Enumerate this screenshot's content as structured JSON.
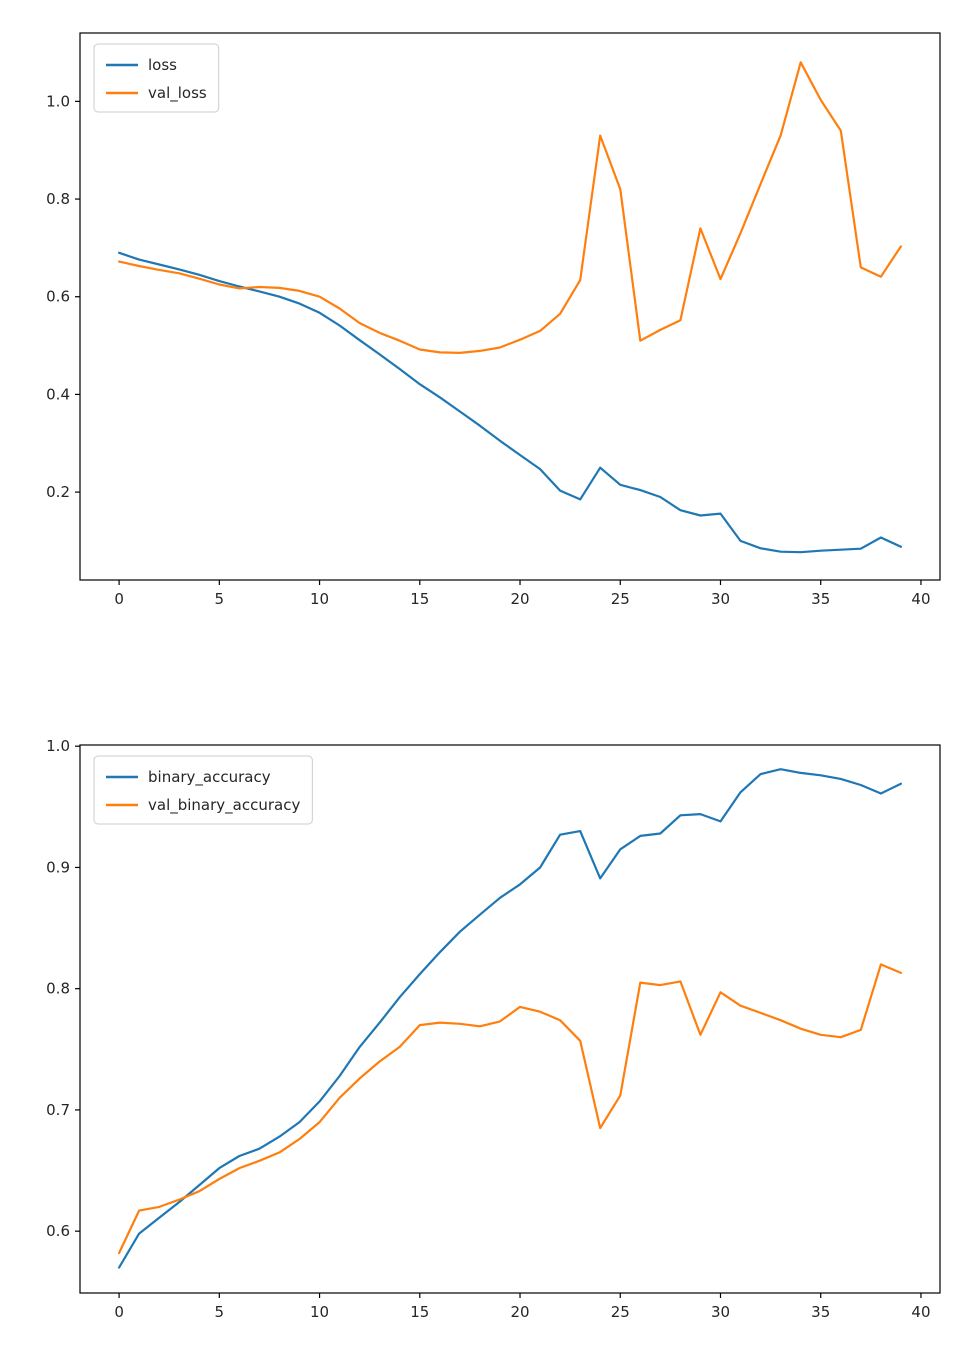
{
  "page": {
    "background": "#ffffff"
  },
  "colors": {
    "line_blue": "#1f77b4",
    "line_orange": "#ff7f0e",
    "axis": "#000000",
    "tick_label": "#262626",
    "legend_bg": "#ffffff",
    "legend_border": "#cccccc"
  },
  "chart_data": [
    {
      "type": "line",
      "title": "",
      "xlabel": "",
      "ylabel": "",
      "grid": false,
      "x": [
        0,
        1,
        2,
        3,
        4,
        5,
        6,
        7,
        8,
        9,
        10,
        11,
        12,
        13,
        14,
        15,
        16,
        17,
        18,
        19,
        20,
        21,
        22,
        23,
        24,
        25,
        26,
        27,
        28,
        29,
        30,
        31,
        32,
        33,
        34,
        35,
        36,
        37,
        38,
        39
      ],
      "series": [
        {
          "name": "loss",
          "color": "#1f77b4",
          "values": [
            0.69,
            0.676,
            0.666,
            0.656,
            0.645,
            0.632,
            0.621,
            0.611,
            0.6,
            0.586,
            0.567,
            0.541,
            0.511,
            0.482,
            0.452,
            0.421,
            0.394,
            0.365,
            0.336,
            0.305,
            0.276,
            0.247,
            0.203,
            0.185,
            0.25,
            0.215,
            0.204,
            0.19,
            0.163,
            0.152,
            0.156,
            0.1,
            0.085,
            0.078,
            0.077,
            0.08,
            0.082,
            0.084,
            0.107,
            0.088
          ]
        },
        {
          "name": "val_loss",
          "color": "#ff7f0e",
          "values": [
            0.672,
            0.663,
            0.655,
            0.648,
            0.637,
            0.625,
            0.617,
            0.62,
            0.618,
            0.612,
            0.6,
            0.576,
            0.546,
            0.526,
            0.51,
            0.492,
            0.486,
            0.485,
            0.489,
            0.496,
            0.512,
            0.53,
            0.565,
            0.634,
            0.93,
            0.82,
            0.51,
            0.532,
            0.552,
            0.74,
            0.636,
            0.73,
            0.831,
            0.93,
            1.08,
            1.003,
            0.94,
            0.66,
            0.641,
            0.703
          ]
        }
      ],
      "xlim": [
        -1.95,
        40.95
      ],
      "ylim": [
        0.02,
        1.14
      ],
      "xticks": [
        0,
        5,
        10,
        15,
        20,
        25,
        30,
        35,
        40
      ],
      "xtick_labels": [
        "0",
        "5",
        "10",
        "15",
        "20",
        "25",
        "30",
        "35",
        "40"
      ],
      "yticks": [
        0.2,
        0.4,
        0.6,
        0.8,
        1.0
      ],
      "ytick_labels": [
        "0.2",
        "0.4",
        "0.6",
        "0.8",
        "1.0"
      ],
      "legend": {
        "position": "upper-left",
        "entries": [
          "loss",
          "val_loss"
        ]
      }
    },
    {
      "type": "line",
      "title": "",
      "xlabel": "",
      "ylabel": "",
      "grid": false,
      "x": [
        0,
        1,
        2,
        3,
        4,
        5,
        6,
        7,
        8,
        9,
        10,
        11,
        12,
        13,
        14,
        15,
        16,
        17,
        18,
        19,
        20,
        21,
        22,
        23,
        24,
        25,
        26,
        27,
        28,
        29,
        30,
        31,
        32,
        33,
        34,
        35,
        36,
        37,
        38,
        39
      ],
      "series": [
        {
          "name": "binary_accuracy",
          "color": "#1f77b4",
          "values": [
            0.57,
            0.598,
            0.611,
            0.624,
            0.638,
            0.652,
            0.662,
            0.668,
            0.678,
            0.69,
            0.707,
            0.728,
            0.752,
            0.772,
            0.793,
            0.812,
            0.83,
            0.847,
            0.861,
            0.875,
            0.886,
            0.9,
            0.927,
            0.93,
            0.891,
            0.915,
            0.926,
            0.928,
            0.943,
            0.944,
            0.938,
            0.962,
            0.977,
            0.981,
            0.978,
            0.976,
            0.973,
            0.968,
            0.961,
            0.969
          ]
        },
        {
          "name": "val_binary_accuracy",
          "color": "#ff7f0e",
          "values": [
            0.582,
            0.617,
            0.62,
            0.626,
            0.633,
            0.643,
            0.652,
            0.658,
            0.665,
            0.676,
            0.69,
            0.71,
            0.726,
            0.74,
            0.752,
            0.77,
            0.772,
            0.771,
            0.769,
            0.773,
            0.785,
            0.781,
            0.774,
            0.757,
            0.685,
            0.712,
            0.805,
            0.803,
            0.806,
            0.762,
            0.797,
            0.786,
            0.78,
            0.774,
            0.767,
            0.762,
            0.76,
            0.766,
            0.82,
            0.813
          ]
        }
      ],
      "xlim": [
        -1.95,
        40.95
      ],
      "ylim": [
        0.549,
        1.001
      ],
      "xticks": [
        0,
        5,
        10,
        15,
        20,
        25,
        30,
        35,
        40
      ],
      "xtick_labels": [
        "0",
        "5",
        "10",
        "15",
        "20",
        "25",
        "30",
        "35",
        "40"
      ],
      "yticks": [
        0.6,
        0.7,
        0.8,
        0.9,
        1.0
      ],
      "ytick_labels": [
        "0.6",
        "0.7",
        "0.8",
        "0.9",
        "1.0"
      ],
      "legend": {
        "position": "upper-left",
        "entries": [
          "binary_accuracy",
          "val_binary_accuracy"
        ]
      }
    }
  ]
}
